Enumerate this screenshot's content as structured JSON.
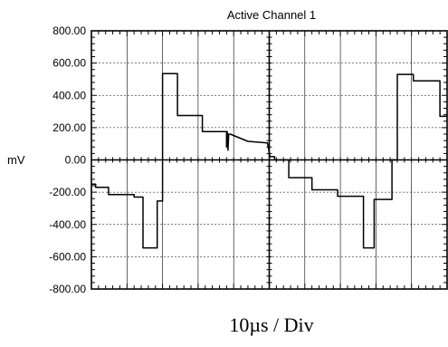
{
  "chart_data": {
    "type": "line",
    "title": "Active Channel 1",
    "ylabel": "mV",
    "xlabel": "10µs / Div",
    "ylim": [
      -800,
      800
    ],
    "yticks": [
      800,
      600,
      400,
      200,
      0,
      -200,
      -400,
      -600,
      -800
    ],
    "ytick_labels": [
      "800.00",
      "600.00",
      "400.00",
      "200.00",
      "0.00",
      "-200.00",
      "-400.00",
      "-600.00",
      "-800.00"
    ],
    "xlim": [
      0,
      10
    ],
    "x_units": "divisions",
    "grid": true,
    "series": [
      {
        "x": [
          0.0,
          0.12,
          0.12,
          0.48,
          0.48,
          1.2,
          1.2,
          1.45,
          1.45,
          1.85,
          1.85,
          2.0,
          2.0,
          2.42,
          2.42,
          3.12,
          3.12,
          3.8,
          3.8,
          3.82,
          3.84,
          3.86,
          3.9,
          4.4,
          4.4,
          4.95,
          4.95,
          5.02,
          5.15,
          5.15,
          5.55,
          5.55,
          6.2,
          6.2,
          6.92,
          6.92,
          7.65,
          7.65,
          7.95,
          7.95,
          8.45,
          8.45,
          8.6,
          8.6,
          9.05,
          9.05,
          9.8,
          9.8,
          10.0
        ],
        "y": [
          -150,
          -150,
          -170,
          -170,
          -215,
          -215,
          -230,
          -230,
          -545,
          -545,
          -255,
          -255,
          535,
          535,
          275,
          275,
          175,
          175,
          80,
          175,
          60,
          160,
          160,
          115,
          115,
          105,
          105,
          20,
          20,
          0,
          0,
          -110,
          -110,
          -185,
          -185,
          -225,
          -225,
          -545,
          -545,
          -245,
          -245,
          0,
          0,
          530,
          530,
          490,
          490,
          270,
          270
        ]
      }
    ]
  }
}
